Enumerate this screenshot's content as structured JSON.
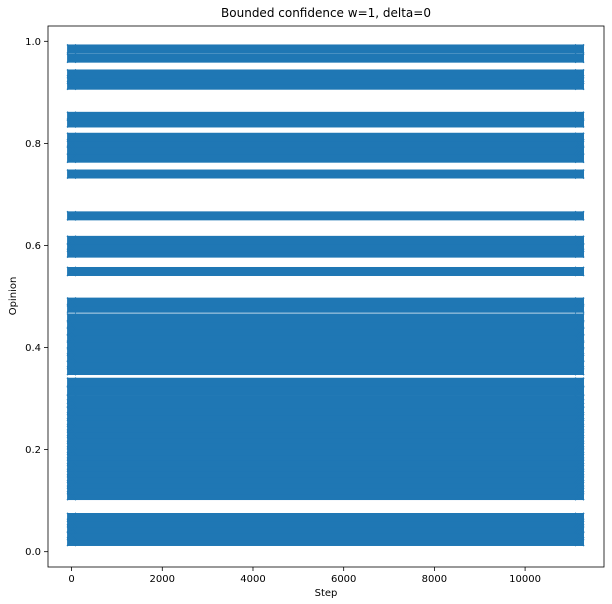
{
  "chart_data": {
    "type": "scatter",
    "title": "Bounded confidence w=1, delta=0",
    "xlabel": "Step",
    "ylabel": "Opinion",
    "xlim": [
      -520,
      11740
    ],
    "ylim": [
      -0.03,
      1.03
    ],
    "xticks": [
      0,
      2000,
      4000,
      6000,
      8000,
      10000
    ],
    "yticks": [
      0.0,
      0.2,
      0.4,
      0.6,
      0.8,
      1.0
    ],
    "xtick_labels": [
      "0",
      "2000",
      "4000",
      "6000",
      "8000",
      "10000"
    ],
    "ytick_labels": [
      "0.0",
      "0.2",
      "0.4",
      "0.6",
      "0.8",
      "1.0"
    ],
    "grid": false,
    "marker": "x",
    "x_range": [
      0,
      11200
    ],
    "series": [
      {
        "color": "#1f77b4",
        "opinion_values": [
          0.02,
          0.031,
          0.045,
          0.056,
          0.067,
          0.11,
          0.121,
          0.132,
          0.143,
          0.154,
          0.165,
          0.176,
          0.187,
          0.198,
          0.209,
          0.22,
          0.231,
          0.242,
          0.253,
          0.265,
          0.276,
          0.29,
          0.298,
          0.315,
          0.332,
          0.355,
          0.366,
          0.38,
          0.392,
          0.405,
          0.418,
          0.432,
          0.445,
          0.458,
          0.477,
          0.489,
          0.549,
          0.585,
          0.596,
          0.61,
          0.658,
          0.74,
          0.771,
          0.787,
          0.8,
          0.812,
          0.84,
          0.853,
          0.914,
          0.925,
          0.936,
          0.967,
          0.985
        ]
      }
    ]
  }
}
